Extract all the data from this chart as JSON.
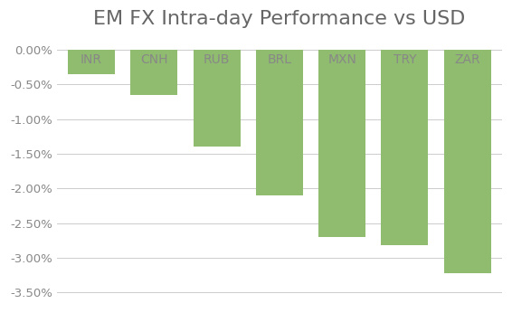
{
  "title": "EM FX Intra-day Performance vs USD",
  "categories": [
    "INR",
    "CNH",
    "RUB",
    "BRL",
    "MXN",
    "TRY",
    "ZAR"
  ],
  "values": [
    -0.35,
    -0.65,
    -1.4,
    -2.1,
    -2.7,
    -2.82,
    -3.22
  ],
  "bar_color": "#8fbc6e",
  "background_color": "#ffffff",
  "ylim": [
    -3.65,
    0.18
  ],
  "yticks": [
    0.0,
    -0.5,
    -1.0,
    -1.5,
    -2.0,
    -2.5,
    -3.0,
    -3.5
  ],
  "ytick_labels": [
    "0.00%",
    "-0.50%",
    "-1.00%",
    "-1.50%",
    "-2.00%",
    "-2.50%",
    "-3.00%",
    "-3.50%"
  ],
  "title_fontsize": 16,
  "label_fontsize": 10,
  "tick_fontsize": 9.5,
  "grid_color": "#cccccc",
  "text_color": "#888888",
  "title_color": "#666666",
  "bar_width": 0.75
}
